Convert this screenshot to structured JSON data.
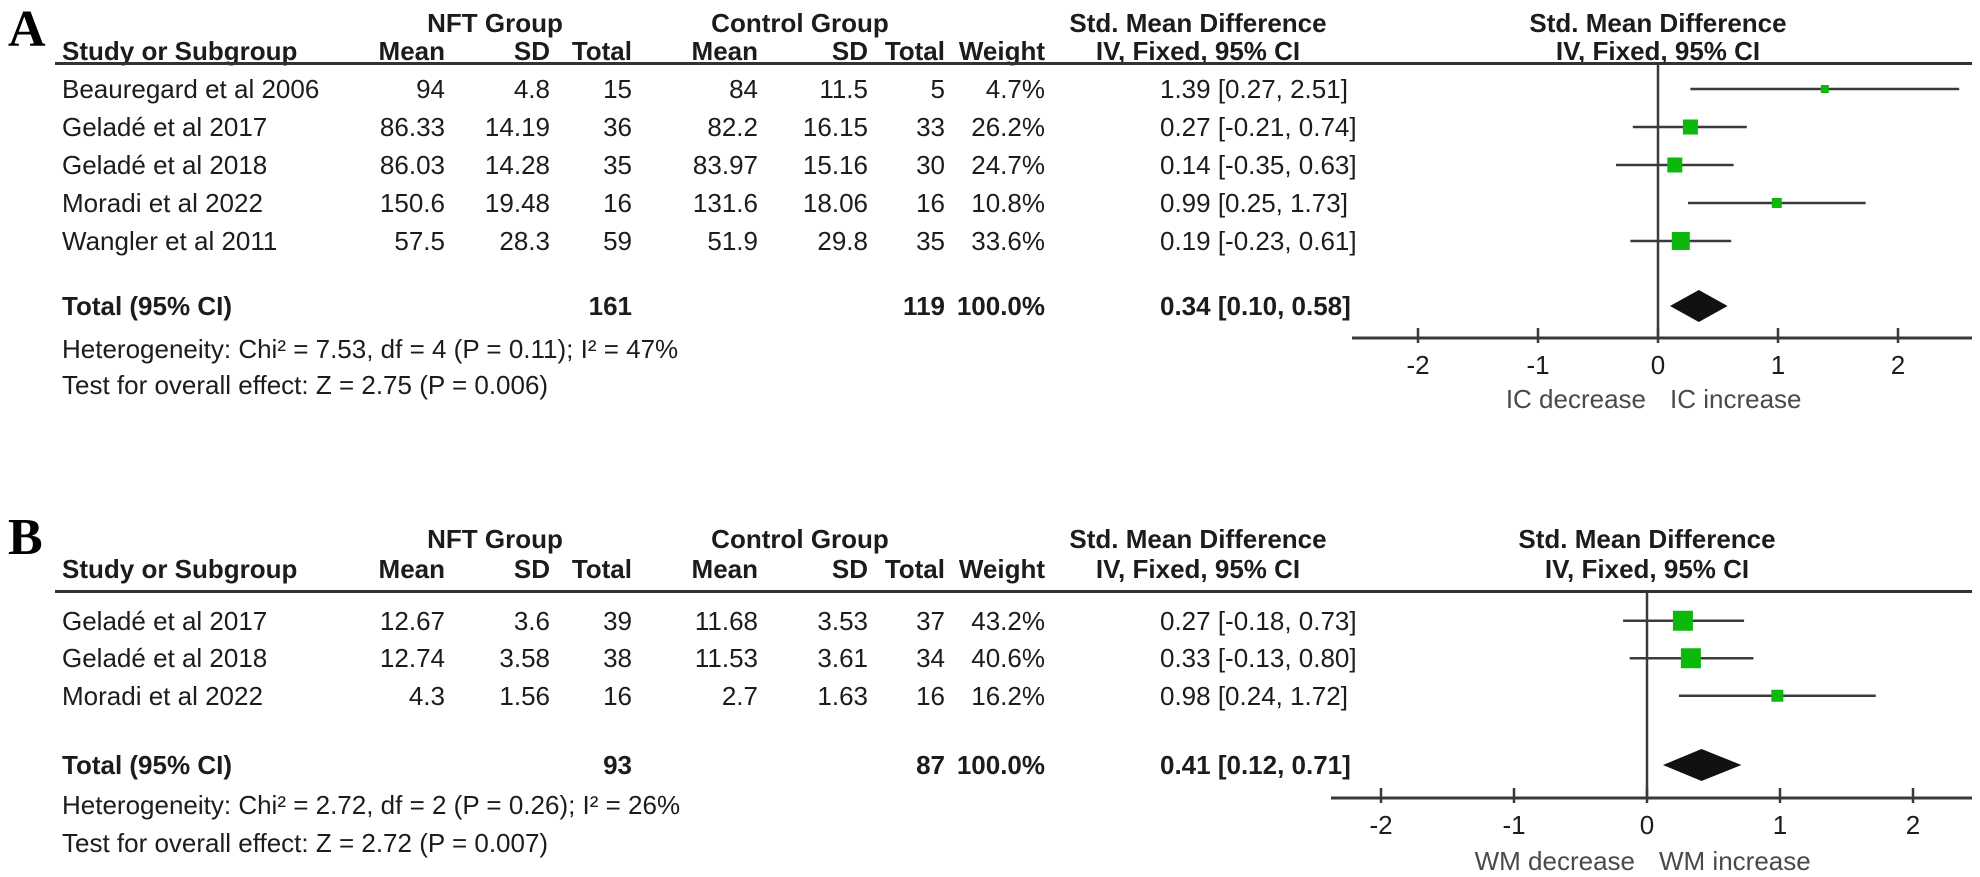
{
  "figure_title": "Forest plots of standardized mean differences (NFT vs Control)",
  "marker_color": "#0bb80b",
  "diamond_color": "#111111",
  "line_color": "#3a3a3a",
  "chart_data": [
    {
      "type": "forest",
      "panel_label": "A",
      "group_headers": {
        "treatment": "NFT Group",
        "control": "Control Group",
        "smd": "Std. Mean Difference"
      },
      "column_headers": {
        "study": "Study or Subgroup",
        "mean": "Mean",
        "sd": "SD",
        "total": "Total",
        "weight": "Weight",
        "method": "IV, Fixed, 95% CI"
      },
      "studies": [
        {
          "study": "Beauregard et al 2006",
          "treatment_mean": "94",
          "treatment_sd": "4.8",
          "treatment_total": "15",
          "control_mean": "84",
          "control_sd": "11.5",
          "control_total": "5",
          "weight": "4.7%",
          "weight_value": 4.7,
          "ci_text": "1.39 [0.27, 2.51]",
          "smd": 1.39,
          "ci_low": 0.27,
          "ci_high": 2.51
        },
        {
          "study": "Geladé et al 2017",
          "treatment_mean": "86.33",
          "treatment_sd": "14.19",
          "treatment_total": "36",
          "control_mean": "82.2",
          "control_sd": "16.15",
          "control_total": "33",
          "weight": "26.2%",
          "weight_value": 26.2,
          "ci_text": "0.27 [-0.21, 0.74]",
          "smd": 0.27,
          "ci_low": -0.21,
          "ci_high": 0.74
        },
        {
          "study": "Geladé et al 2018",
          "treatment_mean": "86.03",
          "treatment_sd": "14.28",
          "treatment_total": "35",
          "control_mean": "83.97",
          "control_sd": "15.16",
          "control_total": "30",
          "weight": "24.7%",
          "weight_value": 24.7,
          "ci_text": "0.14 [-0.35, 0.63]",
          "smd": 0.14,
          "ci_low": -0.35,
          "ci_high": 0.63
        },
        {
          "study": "Moradi et al 2022",
          "treatment_mean": "150.6",
          "treatment_sd": "19.48",
          "treatment_total": "16",
          "control_mean": "131.6",
          "control_sd": "18.06",
          "control_total": "16",
          "weight": "10.8%",
          "weight_value": 10.8,
          "ci_text": "0.99 [0.25, 1.73]",
          "smd": 0.99,
          "ci_low": 0.25,
          "ci_high": 1.73
        },
        {
          "study": "Wangler et al 2011",
          "treatment_mean": "57.5",
          "treatment_sd": "28.3",
          "treatment_total": "59",
          "control_mean": "51.9",
          "control_sd": "29.8",
          "control_total": "35",
          "weight": "33.6%",
          "weight_value": 33.6,
          "ci_text": "0.19 [-0.23, 0.61]",
          "smd": 0.19,
          "ci_low": -0.23,
          "ci_high": 0.61
        }
      ],
      "total": {
        "label": "Total (95% CI)",
        "treatment_total": "161",
        "control_total": "119",
        "weight": "100.0%",
        "ci_text": "0.34 [0.10, 0.58]",
        "smd": 0.34,
        "ci_low": 0.1,
        "ci_high": 0.58
      },
      "heterogeneity": "Heterogeneity: Chi² = 7.53, df = 4 (P = 0.11); I² = 47%",
      "overall_effect": "Test for overall effect: Z = 2.75 (P = 0.006)",
      "axis": {
        "tick_labels": [
          "-2",
          "-1",
          "0",
          "1",
          "2"
        ],
        "tick_values": [
          -2,
          -1,
          0,
          1,
          2
        ],
        "min": -2.55,
        "max": 2.6,
        "left_label": "IC decrease",
        "right_label": "IC increase"
      }
    },
    {
      "type": "forest",
      "panel_label": "B",
      "group_headers": {
        "treatment": "NFT Group",
        "control": "Control Group",
        "smd": "Std. Mean Difference"
      },
      "column_headers": {
        "study": "Study or Subgroup",
        "mean": "Mean",
        "sd": "SD",
        "total": "Total",
        "weight": "Weight",
        "method": "IV, Fixed, 95% CI"
      },
      "studies": [
        {
          "study": "Geladé et al 2017",
          "treatment_mean": "12.67",
          "treatment_sd": "3.6",
          "treatment_total": "39",
          "control_mean": "11.68",
          "control_sd": "3.53",
          "control_total": "37",
          "weight": "43.2%",
          "weight_value": 43.2,
          "ci_text": "0.27 [-0.18, 0.73]",
          "smd": 0.27,
          "ci_low": -0.18,
          "ci_high": 0.73
        },
        {
          "study": "Geladé et al 2018",
          "treatment_mean": "12.74",
          "treatment_sd": "3.58",
          "treatment_total": "38",
          "control_mean": "11.53",
          "control_sd": "3.61",
          "control_total": "34",
          "weight": "40.6%",
          "weight_value": 40.6,
          "ci_text": "0.33 [-0.13, 0.80]",
          "smd": 0.33,
          "ci_low": -0.13,
          "ci_high": 0.8
        },
        {
          "study": "Moradi et al 2022",
          "treatment_mean": "4.3",
          "treatment_sd": "1.56",
          "treatment_total": "16",
          "control_mean": "2.7",
          "control_sd": "1.63",
          "control_total": "16",
          "weight": "16.2%",
          "weight_value": 16.2,
          "ci_text": "0.98 [0.24, 1.72]",
          "smd": 0.98,
          "ci_low": 0.24,
          "ci_high": 1.72
        }
      ],
      "total": {
        "label": "Total (95% CI)",
        "treatment_total": "93",
        "control_total": "87",
        "weight": "100.0%",
        "ci_text": "0.41 [0.12, 0.71]",
        "smd": 0.41,
        "ci_low": 0.12,
        "ci_high": 0.71
      },
      "heterogeneity": "Heterogeneity: Chi² = 2.72, df = 2 (P = 0.26); I² = 26%",
      "overall_effect": "Test for overall effect: Z = 2.72 (P = 0.007)",
      "axis": {
        "tick_labels": [
          "-2",
          "-1",
          "0",
          "1",
          "2"
        ],
        "tick_values": [
          -2,
          -1,
          0,
          1,
          2
        ],
        "min": -2.37,
        "max": 2.45,
        "left_label": "WM decrease",
        "right_label": "WM increase"
      }
    }
  ]
}
